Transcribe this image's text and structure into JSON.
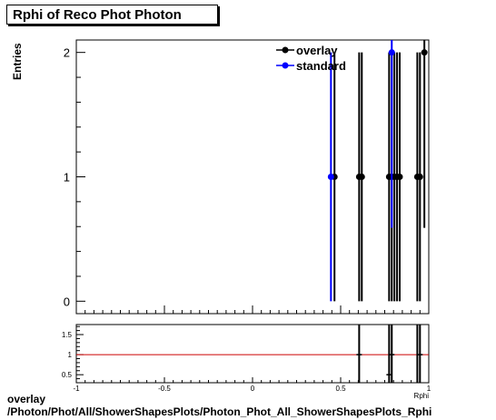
{
  "chart_data": [
    {
      "type": "scatter",
      "title": "Rphi of Reco Phot Photon",
      "ylabel": "Entries",
      "xlim": [
        -1,
        1
      ],
      "ylim": [
        -0.1,
        2.1
      ],
      "x_ticks": [
        -1,
        -0.5,
        0,
        0.5,
        1
      ],
      "y_ticks": [
        0,
        1,
        2
      ],
      "legend": {
        "placement": "top-right",
        "entries": [
          "overlay",
          "standard"
        ]
      },
      "series": [
        {
          "name": "overlay",
          "color": "#000000",
          "points": [
            {
              "x": 0.465,
              "y": 1,
              "err": 1
            },
            {
              "x": 0.605,
              "y": 1,
              "err": 1
            },
            {
              "x": 0.62,
              "y": 1,
              "err": 1
            },
            {
              "x": 0.775,
              "y": 1,
              "err": 1
            },
            {
              "x": 0.79,
              "y": 1,
              "err": 1
            },
            {
              "x": 0.805,
              "y": 1,
              "err": 1
            },
            {
              "x": 0.82,
              "y": 1,
              "err": 1
            },
            {
              "x": 0.835,
              "y": 1,
              "err": 1
            },
            {
              "x": 0.935,
              "y": 1,
              "err": 1
            },
            {
              "x": 0.95,
              "y": 1,
              "err": 1
            },
            {
              "x": 0.975,
              "y": 2,
              "err": 1.41
            }
          ]
        },
        {
          "name": "standard",
          "color": "#0000ff",
          "points": [
            {
              "x": 0.445,
              "y": 1,
              "err": 1
            },
            {
              "x": 0.79,
              "y": 2,
              "err": 1.41
            }
          ]
        }
      ]
    },
    {
      "type": "scatter",
      "xlim": [
        -1,
        1
      ],
      "ylim": [
        0.3,
        1.75
      ],
      "x_ticks": [
        -1,
        -0.5,
        0,
        0.5,
        1
      ],
      "x_tick_labels": [
        "-1",
        "-0.5",
        "0",
        "0.5",
        "1"
      ],
      "y_ticks": [
        0.5,
        1,
        1.5
      ],
      "y_tick_labels": [
        "0.5",
        "1",
        "1.5"
      ],
      "xlabel": "Rphi",
      "reference_line": {
        "y": 1,
        "color": "#cc0000"
      },
      "points": [
        {
          "x": 0.605,
          "y": 1
        },
        {
          "x": 0.775,
          "y": 0.5
        },
        {
          "x": 0.79,
          "y": 1
        },
        {
          "x": 0.95,
          "y": 1
        }
      ]
    }
  ],
  "footer": {
    "line1": "overlay",
    "line2": "/Photon/Phot/All/ShowerShapesPlots/Photon_Phot_All_ShowerShapesPlots_Rphi"
  }
}
